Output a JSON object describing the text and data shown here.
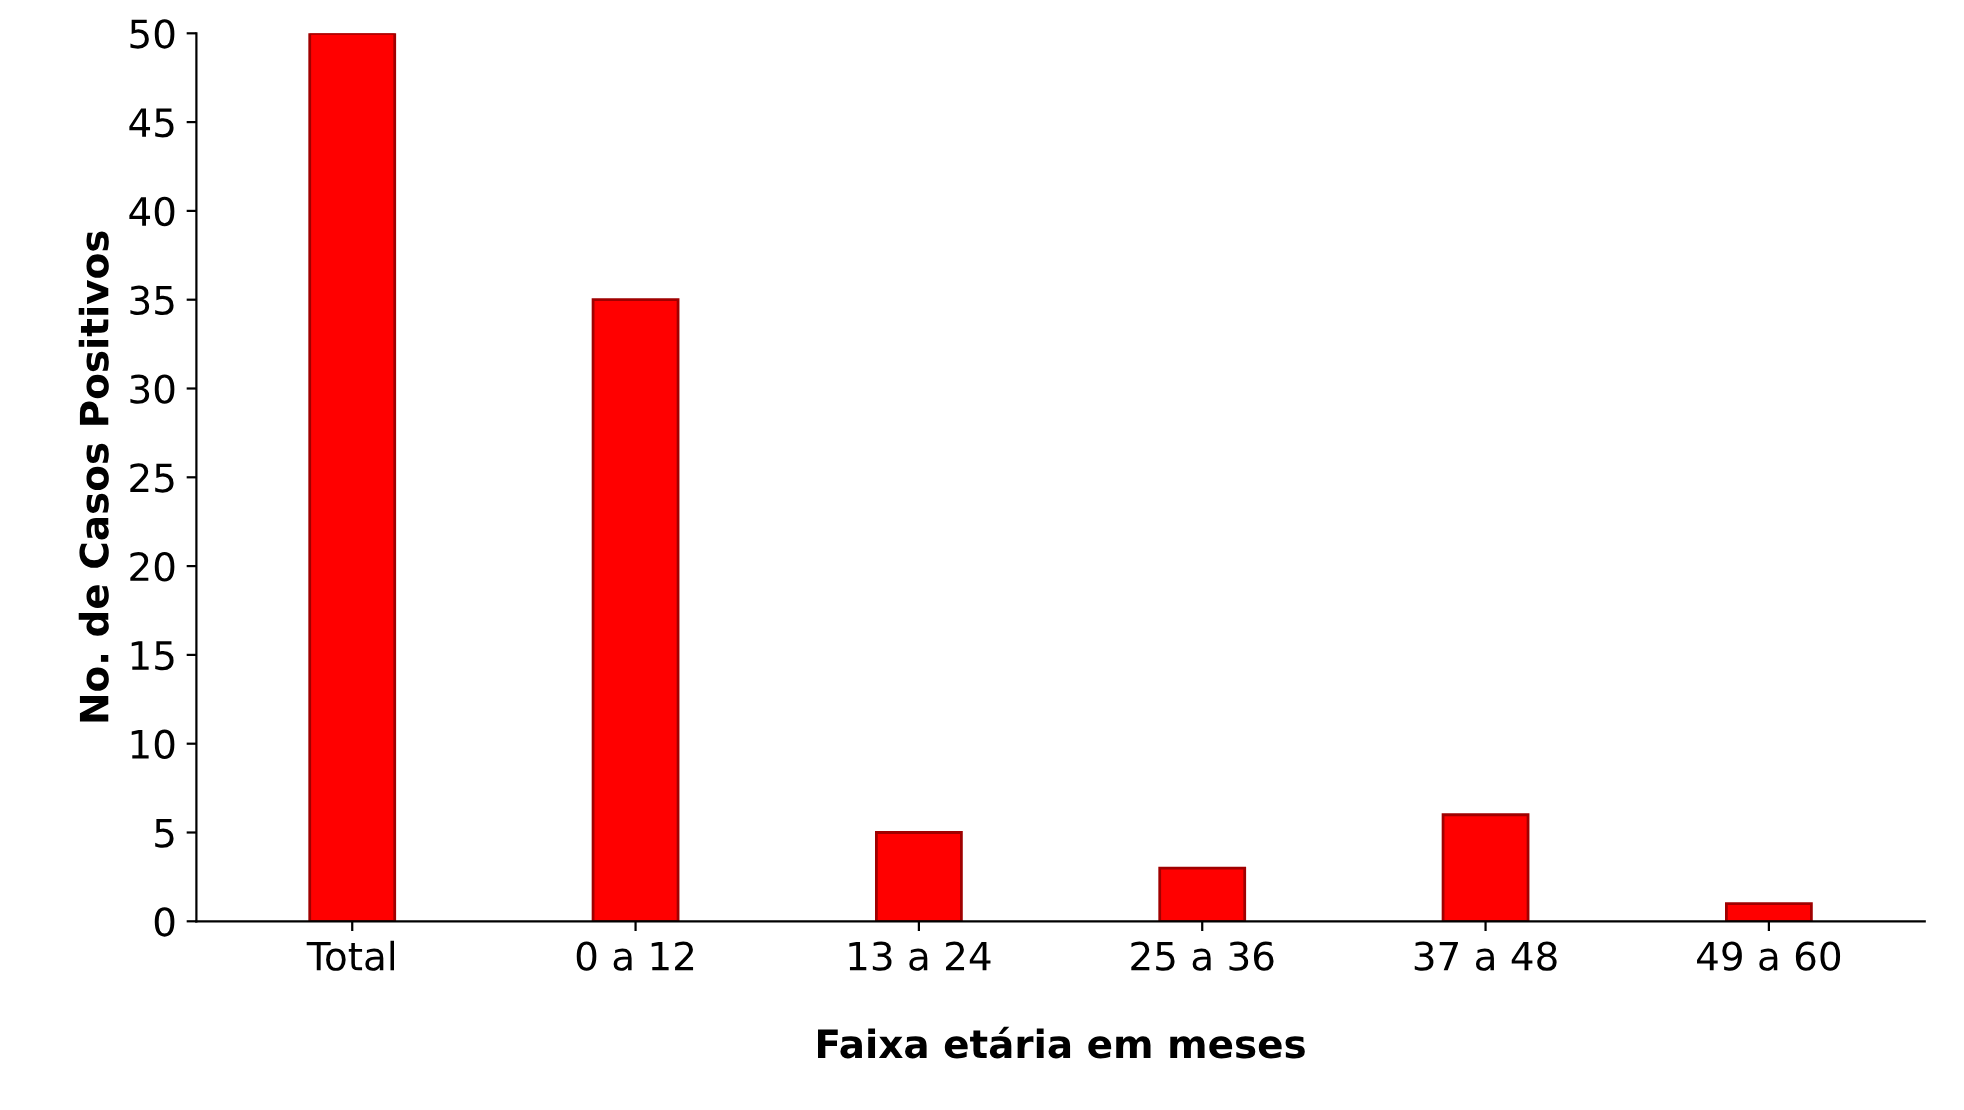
{
  "chart_data": {
    "type": "bar",
    "xlabel": "Faixa etária em meses",
    "ylabel": "No. de Casos Positivos",
    "categories": [
      "Total",
      "0 a 12",
      "13 a 24",
      "25 a 36",
      "37 a 48",
      "49 a 60"
    ],
    "values": [
      50,
      35,
      5,
      3,
      6,
      1
    ],
    "color": "#ff0000",
    "ylim": [
      0,
      50
    ],
    "yticks": [
      0,
      5,
      10,
      15,
      20,
      25,
      30,
      35,
      40,
      45,
      50
    ],
    "grid": false
  }
}
